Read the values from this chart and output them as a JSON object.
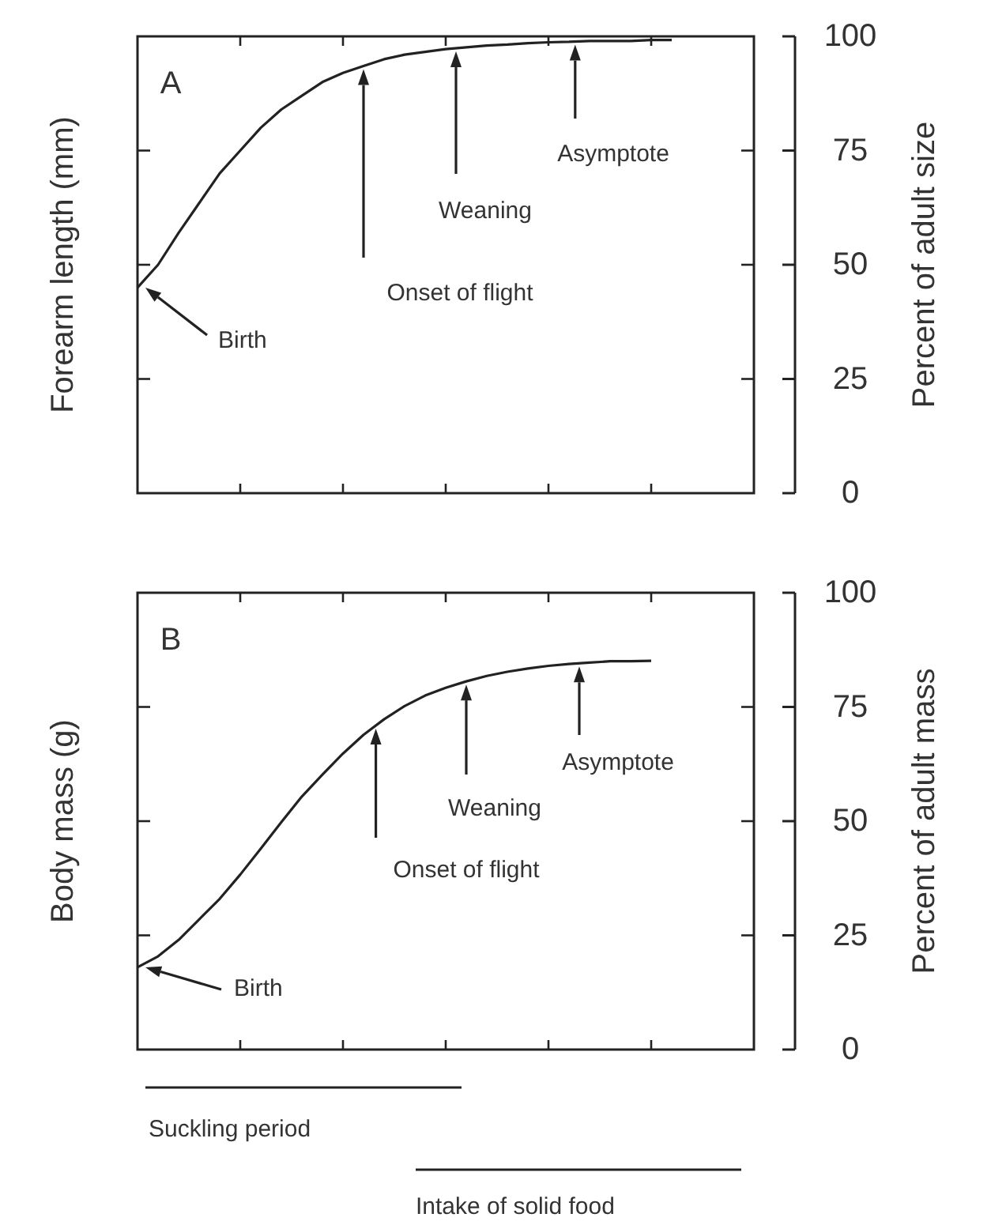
{
  "chart_data": [
    {
      "type": "line",
      "title": "A",
      "ylabel": "Forearm length (mm)",
      "y2label": "Percent of adult size",
      "categories": [
        null,
        null,
        null,
        null,
        null,
        null,
        null,
        null,
        null,
        null,
        null,
        null,
        null,
        null,
        null,
        null,
        null,
        null,
        null,
        null,
        null,
        null,
        null,
        null,
        null,
        null,
        null
      ],
      "ylim": [
        0,
        100
      ],
      "yticks": [
        0,
        25,
        50,
        75,
        100
      ],
      "tick_labels": "y",
      "grid": false,
      "marker": "none",
      "series": [
        {
          "color": "#222222",
          "values": [
            45,
            50,
            57,
            63.5,
            70,
            75,
            80,
            84,
            87,
            90,
            92,
            93.5,
            95,
            96,
            96.6,
            97.2,
            97.6,
            98,
            98.2,
            98.5,
            98.7,
            98.8,
            99,
            99,
            99,
            99.2,
            99.2
          ]
        }
      ],
      "annotations": [
        "Birth",
        "Onset of flight",
        "Weaning",
        "Asymptote"
      ]
    },
    {
      "type": "line",
      "title": "B",
      "ylabel": "Body mass (g)",
      "y2label": "Percent of adult mass",
      "categories": [
        null,
        null,
        null,
        null,
        null,
        null,
        null,
        null,
        null,
        null,
        null,
        null,
        null,
        null,
        null,
        null,
        null,
        null,
        null,
        null,
        null,
        null,
        null,
        null,
        null,
        null
      ],
      "ylim": [
        0,
        100
      ],
      "yticks": [
        0,
        25,
        50,
        75,
        100
      ],
      "tick_labels": "y",
      "grid": false,
      "marker": "none",
      "series": [
        {
          "color": "#222222",
          "values": [
            18,
            20.4,
            24,
            28.5,
            33,
            38.3,
            44,
            49.8,
            55.4,
            60.2,
            64.8,
            68.9,
            72.3,
            75.2,
            77.5,
            79.2,
            80.6,
            81.8,
            82.7,
            83.4,
            84,
            84.4,
            84.7,
            85,
            85,
            85.1
          ]
        }
      ],
      "annotations": [
        "Birth",
        "Onset of flight",
        "Weaning",
        "Asymptote",
        "Suckling period",
        "Intake of solid food"
      ]
    }
  ]
}
